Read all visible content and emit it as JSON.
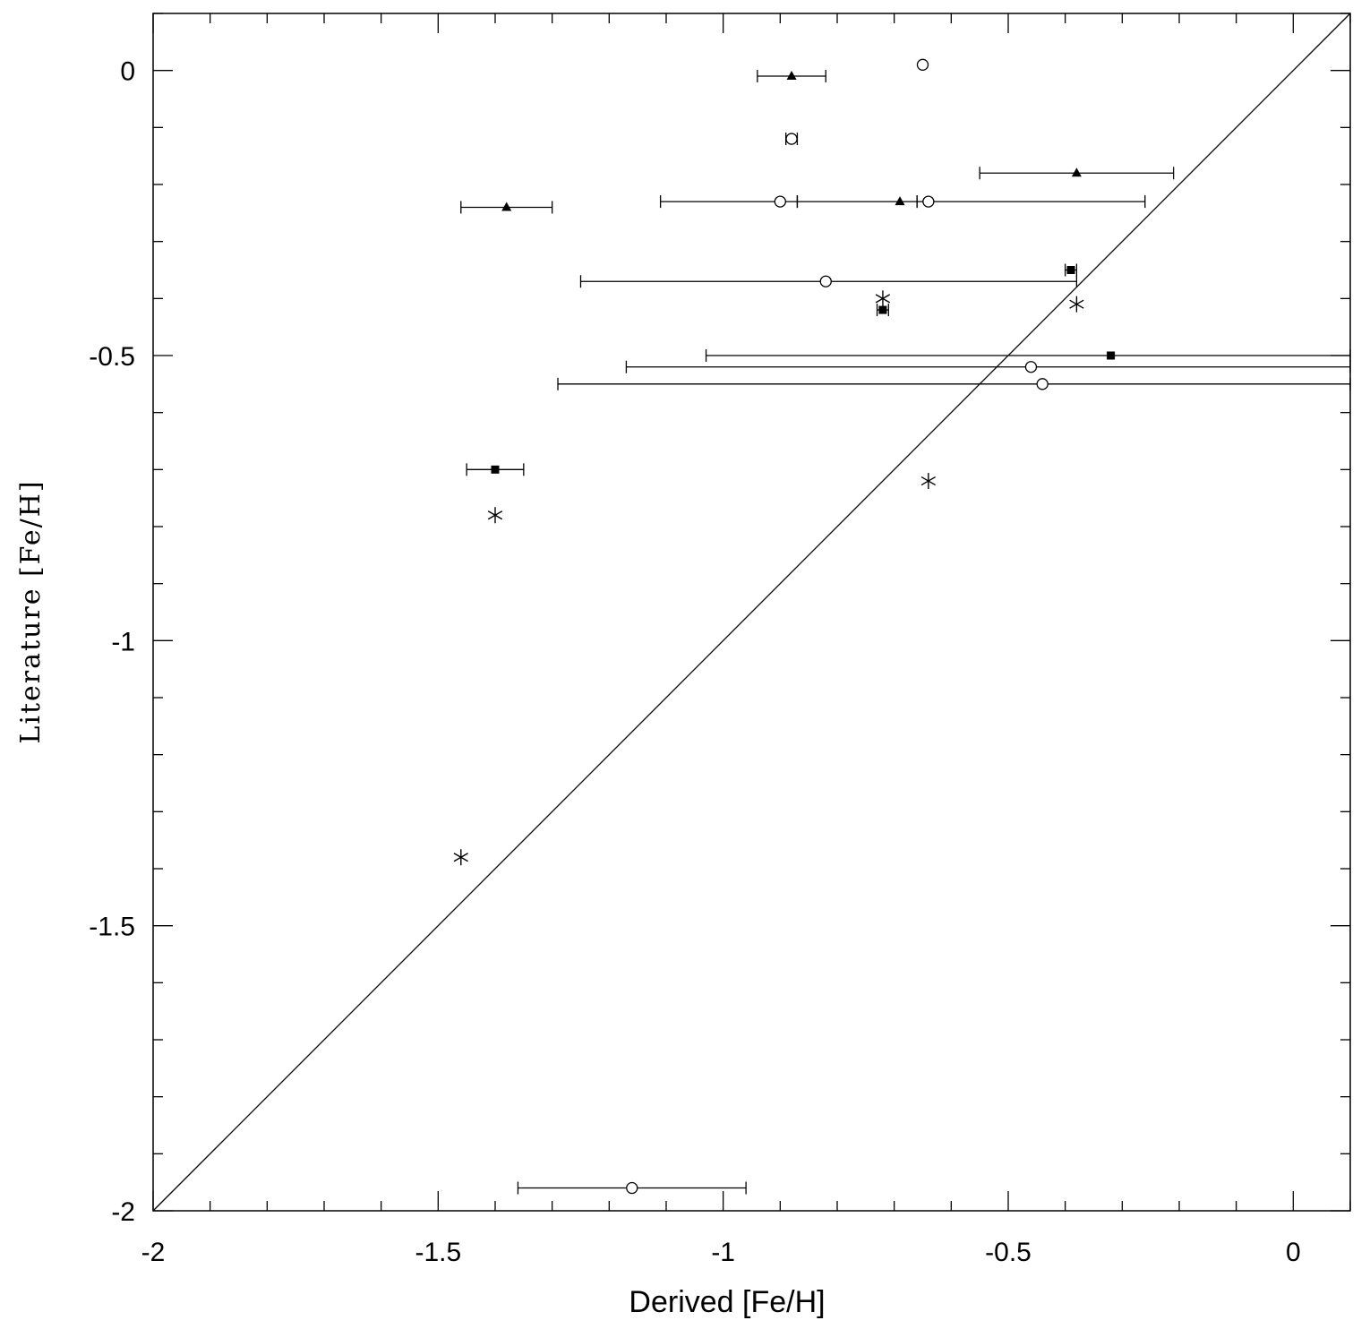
{
  "chart_data": {
    "type": "scatter",
    "xlabel": "Derived [Fe/H]",
    "ylabel": "Literature [Fe/H]",
    "xlim": [
      -2,
      0.1
    ],
    "ylim": [
      -2,
      0.1
    ],
    "x_ticks": [
      -2,
      -1.5,
      -1,
      -0.5,
      0
    ],
    "x_tick_labels": [
      "-2",
      "-1.5",
      "-1",
      "-0.5",
      "0"
    ],
    "y_ticks": [
      -2,
      -1.5,
      -1,
      -0.5,
      0
    ],
    "y_tick_labels": [
      "-2",
      "-1.5",
      "-1",
      "-0.5",
      "0"
    ],
    "x_minor_step": 0.1,
    "y_minor_step": 0.1,
    "reference_line": "y = x",
    "grid": false,
    "legend": "none",
    "series": [
      {
        "marker": "filled-triangle",
        "points": [
          {
            "x": -0.88,
            "y": -0.01,
            "xerr_low": 0.06,
            "xerr_high": 0.06
          },
          {
            "x": -0.38,
            "y": -0.18,
            "xerr_low": 0.17,
            "xerr_high": 0.17
          },
          {
            "x": -0.69,
            "y": -0.23,
            "xerr_low": 0.18,
            "xerr_high": 0.03
          },
          {
            "x": -1.38,
            "y": -0.24,
            "xerr_low": 0.08,
            "xerr_high": 0.08
          }
        ]
      },
      {
        "marker": "open-circle",
        "points": [
          {
            "x": -0.65,
            "y": 0.01,
            "xerr_low": 0.0,
            "xerr_high": 0.0
          },
          {
            "x": -0.88,
            "y": -0.12,
            "xerr_low": 0.01,
            "xerr_high": 0.01
          },
          {
            "x": -0.9,
            "y": -0.23,
            "xerr_low": 0.21,
            "xerr_high": 0.03
          },
          {
            "x": -0.64,
            "y": -0.23,
            "xerr_low": 0.02,
            "xerr_high": 0.38
          },
          {
            "x": -0.82,
            "y": -0.37,
            "xerr_low": 0.43,
            "xerr_high": 0.44
          },
          {
            "x": -0.46,
            "y": -0.52,
            "xerr_low": 0.71,
            "xerr_high": 0.56
          },
          {
            "x": -0.44,
            "y": -0.55,
            "xerr_low": 0.85,
            "xerr_high": 0.54
          },
          {
            "x": -1.16,
            "y": -1.96,
            "xerr_low": 0.2,
            "xerr_high": 0.2
          }
        ]
      },
      {
        "marker": "filled-square",
        "points": [
          {
            "x": -0.39,
            "y": -0.35,
            "xerr_low": 0.01,
            "xerr_high": 0.01
          },
          {
            "x": -0.72,
            "y": -0.42,
            "xerr_low": 0.01,
            "xerr_high": 0.01
          },
          {
            "x": -0.32,
            "y": -0.5,
            "xerr_low": 0.71,
            "xerr_high": 0.42
          },
          {
            "x": -1.4,
            "y": -0.7,
            "xerr_low": 0.05,
            "xerr_high": 0.05
          }
        ]
      },
      {
        "marker": "asterisk",
        "points": [
          {
            "x": -0.72,
            "y": -0.4
          },
          {
            "x": -0.38,
            "y": -0.41
          },
          {
            "x": -0.64,
            "y": -0.72
          },
          {
            "x": -1.4,
            "y": -0.78
          },
          {
            "x": -1.46,
            "y": -1.38
          }
        ]
      }
    ]
  }
}
